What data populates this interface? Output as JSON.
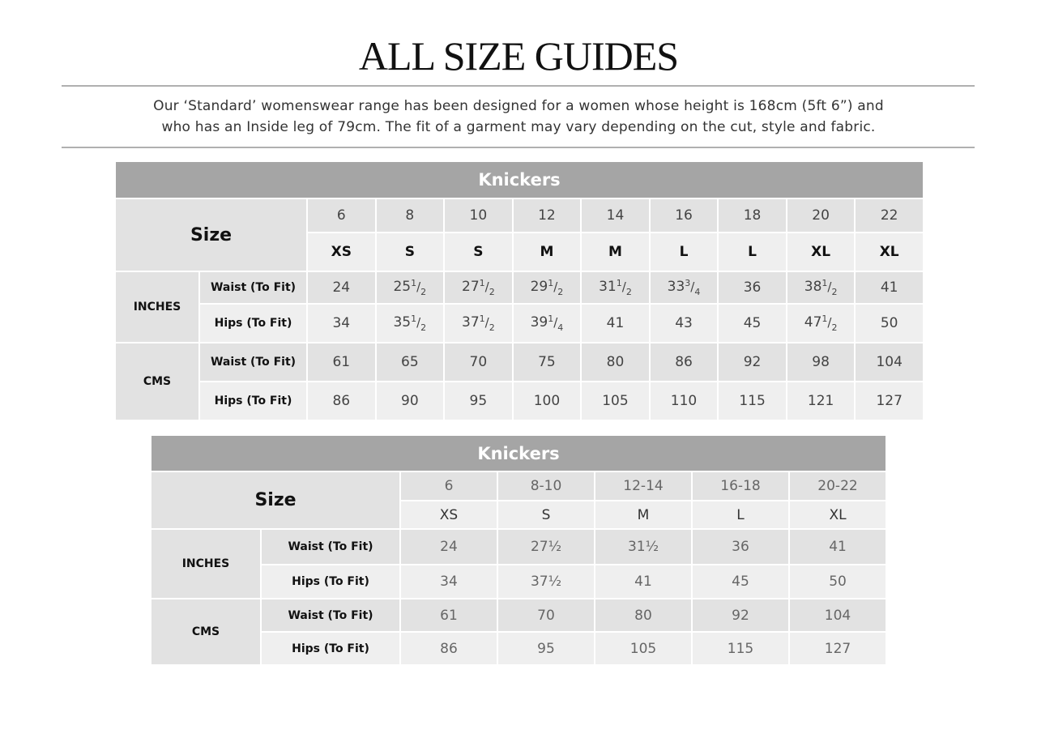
{
  "title": "ALL SIZE GUIDES",
  "intro": [
    "Our ‘Standard’ womenswear range has been designed for a women whose height is 168cm (5ft 6”) and",
    "who has an Inside leg of 79cm. The fit of a garment may vary depending on the cut, style and fabric."
  ],
  "tables": [
    {
      "title": "Knickers",
      "size_label": "Size",
      "sizes": [
        "6",
        "8",
        "10",
        "12",
        "14",
        "16",
        "18",
        "20",
        "22"
      ],
      "letters": [
        "XS",
        "S",
        "S",
        "M",
        "M",
        "L",
        "L",
        "XL",
        "XL"
      ],
      "groups": [
        {
          "label": "INCHES",
          "rows": [
            {
              "label": "Waist (To Fit)",
              "values": [
                "24",
                "25 1/2",
                "27 1/2",
                "29 1/2",
                "31 1/2",
                "33 3/4",
                "36",
                "38 1/2",
                "41"
              ]
            },
            {
              "label": "Hips (To Fit)",
              "values": [
                "34",
                "35 1/2",
                "37 1/2",
                "39 1/4",
                "41",
                "43",
                "45",
                "47 1/2",
                "50"
              ]
            }
          ]
        },
        {
          "label": "CMS",
          "rows": [
            {
              "label": "Waist (To Fit)",
              "values": [
                "61",
                "65",
                "70",
                "75",
                "80",
                "86",
                "92",
                "98",
                "104"
              ]
            },
            {
              "label": "Hips (To Fit)",
              "values": [
                "86",
                "90",
                "95",
                "100",
                "105",
                "110",
                "115",
                "121",
                "127"
              ]
            }
          ]
        }
      ]
    },
    {
      "title": "Knickers",
      "size_label": "Size",
      "sizes": [
        "6",
        "8-10",
        "12-14",
        "16-18",
        "20-22"
      ],
      "letters": [
        "XS",
        "S",
        "M",
        "L",
        "XL"
      ],
      "groups": [
        {
          "label": "INCHES",
          "rows": [
            {
              "label": "Waist (To Fit)",
              "values": [
                "24",
                "27½",
                "31½",
                "36",
                "41"
              ]
            },
            {
              "label": "Hips (To Fit)",
              "values": [
                "34",
                "37½",
                "41",
                "45",
                "50"
              ]
            }
          ]
        },
        {
          "label": "CMS",
          "rows": [
            {
              "label": "Waist (To Fit)",
              "values": [
                "61",
                "70",
                "80",
                "92",
                "104"
              ]
            },
            {
              "label": "Hips (To Fit)",
              "values": [
                "86",
                "95",
                "105",
                "115",
                "127"
              ]
            }
          ]
        }
      ]
    }
  ]
}
